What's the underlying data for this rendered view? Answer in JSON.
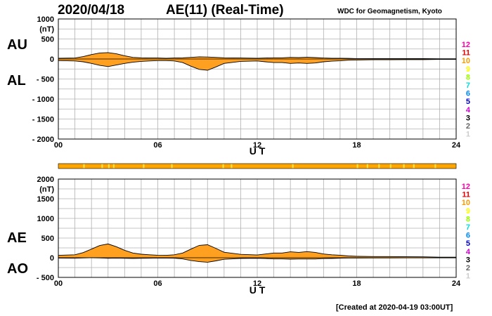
{
  "header": {
    "date": "2020/04/18",
    "title": "AE(11) (Real-Time)",
    "organization": "WDC for Geomagnetism, Kyoto"
  },
  "footer": {
    "created": "[Created at 2020-04-19 03:00UT]"
  },
  "labels": {
    "top_upper": "AU",
    "top_lower": "AL",
    "bottom_upper": "AE",
    "bottom_lower": "AO",
    "unit": "(nT)",
    "xlabel": "U T"
  },
  "station_legend": {
    "entries": [
      "12",
      "11",
      "10",
      "9",
      "8",
      "7",
      "6",
      "5",
      "4",
      "3",
      "2",
      "1"
    ],
    "colors": [
      "#ff00aa",
      "#ee0000",
      "#ff9900",
      "#ffff00",
      "#99ff00",
      "#00dddd",
      "#0088ff",
      "#0000cc",
      "#cc00cc",
      "#000000",
      "#666666",
      "#cccccc"
    ]
  },
  "colors": {
    "fill": "#ffa020",
    "fill_light": "#ffd040",
    "outline": "#000000",
    "grid": "#b0b0b0",
    "bar": "#ffa500",
    "bar_highlight": "#ffe040"
  },
  "chart_data": [
    {
      "type": "area",
      "panel": "top",
      "ylim": [
        -2000,
        1000
      ],
      "yticks": [
        1000,
        500,
        0,
        -500,
        -1000,
        -1500,
        -2000
      ],
      "ytick_labels": [
        "1000",
        "500",
        "0",
        "- 500",
        "- 1000",
        "- 1500",
        "- 2000"
      ],
      "xlim": [
        0,
        24
      ],
      "xticks": [
        0,
        6,
        12,
        18,
        24
      ],
      "xtick_labels": [
        "00",
        "06",
        "12",
        "18",
        "24"
      ],
      "x": [
        0,
        1,
        1.5,
        2,
        2.5,
        3,
        3.5,
        4,
        4.5,
        5,
        5.5,
        6,
        6.5,
        7,
        7.5,
        8,
        8.5,
        9,
        9.5,
        10,
        11,
        12,
        12.5,
        13,
        13.5,
        14,
        14.5,
        15,
        15.5,
        16,
        16.5,
        17,
        17.5,
        18,
        19,
        20,
        21,
        22,
        23,
        24
      ],
      "series": [
        {
          "name": "AU",
          "values": [
            20,
            25,
            60,
            110,
            150,
            160,
            130,
            80,
            40,
            30,
            25,
            25,
            20,
            25,
            30,
            40,
            55,
            50,
            40,
            30,
            25,
            20,
            25,
            30,
            30,
            40,
            35,
            45,
            35,
            25,
            20,
            20,
            15,
            10,
            10,
            10,
            10,
            8,
            5,
            5
          ]
        },
        {
          "name": "AL",
          "values": [
            -40,
            -50,
            -70,
            -110,
            -160,
            -190,
            -150,
            -110,
            -80,
            -60,
            -50,
            -40,
            -40,
            -50,
            -90,
            -180,
            -260,
            -280,
            -200,
            -110,
            -60,
            -50,
            -70,
            -90,
            -90,
            -110,
            -100,
            -110,
            -100,
            -70,
            -55,
            -45,
            -30,
            -25,
            -20,
            -20,
            -15,
            -15,
            -10,
            -10
          ]
        }
      ]
    },
    {
      "type": "area",
      "panel": "bottom",
      "ylim": [
        -500,
        2000
      ],
      "yticks": [
        2000,
        1500,
        1000,
        500,
        0,
        -500
      ],
      "ytick_labels": [
        "2000",
        "1500",
        "1000",
        "500",
        "0",
        "- 500"
      ],
      "xlim": [
        0,
        24
      ],
      "xticks": [
        0,
        6,
        12,
        18,
        24
      ],
      "xtick_labels": [
        "00",
        "06",
        "12",
        "18",
        "24"
      ],
      "x": [
        0,
        1,
        1.5,
        2,
        2.5,
        3,
        3.5,
        4,
        4.5,
        5,
        5.5,
        6,
        6.5,
        7,
        7.5,
        8,
        8.5,
        9,
        9.5,
        10,
        11,
        12,
        12.5,
        13,
        13.5,
        14,
        14.5,
        15,
        15.5,
        16,
        16.5,
        17,
        17.5,
        18,
        19,
        20,
        21,
        22,
        23,
        24
      ],
      "series": [
        {
          "name": "AE",
          "values": [
            60,
            75,
            130,
            220,
            310,
            350,
            280,
            190,
            120,
            90,
            75,
            65,
            60,
            75,
            120,
            220,
            315,
            330,
            240,
            140,
            85,
            70,
            95,
            120,
            120,
            150,
            135,
            155,
            135,
            95,
            75,
            65,
            45,
            35,
            30,
            30,
            25,
            23,
            15,
            15
          ]
        },
        {
          "name": "AO",
          "values": [
            -10,
            -12,
            -5,
            0,
            -5,
            -15,
            -10,
            -15,
            -20,
            -15,
            -12,
            -8,
            -10,
            -12,
            -30,
            -70,
            -100,
            -115,
            -80,
            -40,
            -18,
            -15,
            -22,
            -30,
            -30,
            -35,
            -32,
            -32,
            -32,
            -22,
            -18,
            -12,
            -8,
            -8,
            -5,
            -5,
            -3,
            -4,
            -3,
            -3
          ]
        }
      ]
    }
  ]
}
